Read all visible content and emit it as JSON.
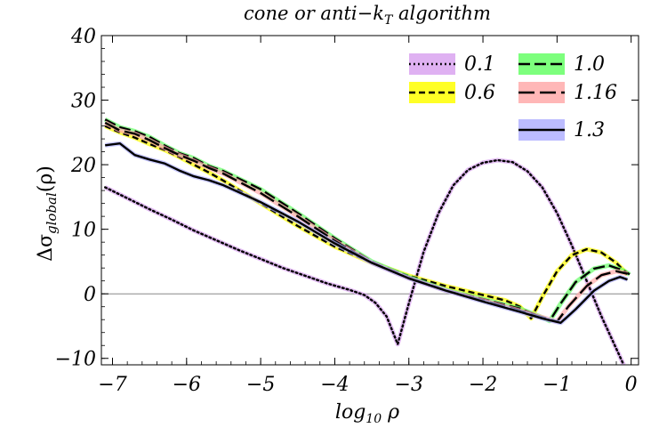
{
  "chart_data": {
    "type": "line",
    "title": "cone or anti−k",
    "title_sub": "T",
    "title_suffix": " algorithm",
    "xlabel": "log",
    "xlabel_sub": "10",
    "xlabel_suffix": " ρ",
    "ylabel": "Δσ",
    "ylabel_sub": "global",
    "ylabel_suffix": "(ρ)",
    "xlim": [
      -7.15,
      0.1
    ],
    "ylim": [
      -11,
      40
    ],
    "xticks": [
      -7,
      -6,
      -5,
      -4,
      -3,
      -2,
      -1,
      0
    ],
    "xtick_labels": [
      "−7",
      "−6",
      "−5",
      "−4",
      "−3",
      "−2",
      "−1",
      "0"
    ],
    "yticks": [
      -10,
      0,
      10,
      20,
      30,
      40
    ],
    "ytick_labels": [
      "−10",
      "0",
      "10",
      "20",
      "30",
      "40"
    ],
    "zero_line": true,
    "legend_position": "top-right",
    "series": [
      {
        "name": "0.1",
        "dash": "dot",
        "band": "#d9a3f0",
        "points": [
          [
            -7.1,
            16.5
          ],
          [
            -6.8,
            14.8
          ],
          [
            -6.5,
            13.1
          ],
          [
            -6.2,
            11.5
          ],
          [
            -5.9,
            9.8
          ],
          [
            -5.6,
            8.3
          ],
          [
            -5.3,
            6.8
          ],
          [
            -5.0,
            5.4
          ],
          [
            -4.7,
            4.0
          ],
          [
            -4.4,
            2.8
          ],
          [
            -4.1,
            1.6
          ],
          [
            -3.8,
            0.6
          ],
          [
            -3.6,
            -0.2
          ],
          [
            -3.45,
            -1.4
          ],
          [
            -3.3,
            -3.5
          ],
          [
            -3.15,
            -7.8
          ],
          [
            -3.0,
            -1.5
          ],
          [
            -2.8,
            6.5
          ],
          [
            -2.6,
            12.5
          ],
          [
            -2.4,
            16.8
          ],
          [
            -2.2,
            19.2
          ],
          [
            -2.0,
            20.3
          ],
          [
            -1.8,
            20.7
          ],
          [
            -1.6,
            20.4
          ],
          [
            -1.4,
            19.0
          ],
          [
            -1.2,
            16.5
          ],
          [
            -1.0,
            12.5
          ],
          [
            -0.8,
            7.5
          ],
          [
            -0.6,
            2.0
          ],
          [
            -0.4,
            -3.5
          ],
          [
            -0.2,
            -8.5
          ],
          [
            -0.1,
            -11.0
          ]
        ]
      },
      {
        "name": "0.6",
        "dash": "dash",
        "band": "#ffff00",
        "points": [
          [
            -7.1,
            26.0
          ],
          [
            -6.9,
            25.0
          ],
          [
            -6.7,
            24.2
          ],
          [
            -6.5,
            23.2
          ],
          [
            -6.3,
            22.3
          ],
          [
            -6.1,
            21.2
          ],
          [
            -5.9,
            20.0
          ],
          [
            -5.7,
            18.8
          ],
          [
            -5.5,
            17.5
          ],
          [
            -5.0,
            14.0
          ],
          [
            -4.5,
            10.5
          ],
          [
            -4.0,
            7.3
          ],
          [
            -3.5,
            4.8
          ],
          [
            -3.0,
            2.8
          ],
          [
            -2.5,
            1.2
          ],
          [
            -2.0,
            -0.2
          ],
          [
            -1.7,
            -1.0
          ],
          [
            -1.5,
            -2.0
          ],
          [
            -1.35,
            -3.8
          ],
          [
            -1.2,
            -0.5
          ],
          [
            -1.0,
            3.5
          ],
          [
            -0.8,
            6.0
          ],
          [
            -0.6,
            6.9
          ],
          [
            -0.4,
            6.4
          ],
          [
            -0.2,
            4.8
          ],
          [
            -0.05,
            3.0
          ]
        ]
      },
      {
        "name": "1.0",
        "dash": "longdash",
        "band": "#66ff66",
        "points": [
          [
            -7.1,
            27.0
          ],
          [
            -6.9,
            25.8
          ],
          [
            -6.7,
            25.2
          ],
          [
            -6.5,
            24.3
          ],
          [
            -6.3,
            23.0
          ],
          [
            -6.1,
            21.8
          ],
          [
            -5.9,
            21.0
          ],
          [
            -5.7,
            19.8
          ],
          [
            -5.5,
            19.0
          ],
          [
            -5.0,
            16.2
          ],
          [
            -4.5,
            12.5
          ],
          [
            -4.0,
            8.6
          ],
          [
            -3.5,
            5.0
          ],
          [
            -3.0,
            2.6
          ],
          [
            -2.5,
            0.6
          ],
          [
            -2.0,
            -0.8
          ],
          [
            -1.5,
            -2.3
          ],
          [
            -1.25,
            -3.4
          ],
          [
            -1.1,
            -4.2
          ],
          [
            -0.95,
            -1.5
          ],
          [
            -0.75,
            1.8
          ],
          [
            -0.5,
            3.9
          ],
          [
            -0.3,
            4.4
          ],
          [
            -0.1,
            3.6
          ],
          [
            -0.02,
            3.0
          ]
        ]
      },
      {
        "name": "1.16",
        "dash": "xlongdash",
        "band": "#ffaaaa",
        "points": [
          [
            -7.1,
            26.5
          ],
          [
            -6.9,
            25.3
          ],
          [
            -6.7,
            24.8
          ],
          [
            -6.5,
            23.8
          ],
          [
            -6.3,
            22.6
          ],
          [
            -6.1,
            21.5
          ],
          [
            -5.9,
            20.6
          ],
          [
            -5.7,
            19.5
          ],
          [
            -5.5,
            18.6
          ],
          [
            -5.0,
            15.6
          ],
          [
            -4.5,
            12.0
          ],
          [
            -4.0,
            8.2
          ],
          [
            -3.5,
            4.8
          ],
          [
            -3.0,
            2.4
          ],
          [
            -2.5,
            0.5
          ],
          [
            -2.0,
            -1.0
          ],
          [
            -1.5,
            -2.6
          ],
          [
            -1.15,
            -3.8
          ],
          [
            -1.0,
            -4.3
          ],
          [
            -0.85,
            -2.0
          ],
          [
            -0.6,
            1.2
          ],
          [
            -0.4,
            2.9
          ],
          [
            -0.2,
            3.5
          ],
          [
            -0.05,
            3.1
          ]
        ]
      },
      {
        "name": "1.3",
        "dash": "solid",
        "band": "#b0b0ff",
        "points": [
          [
            -7.1,
            23.0
          ],
          [
            -6.9,
            23.3
          ],
          [
            -6.7,
            21.5
          ],
          [
            -6.5,
            20.8
          ],
          [
            -6.3,
            20.2
          ],
          [
            -6.1,
            19.1
          ],
          [
            -5.9,
            18.2
          ],
          [
            -5.7,
            17.6
          ],
          [
            -5.5,
            16.8
          ],
          [
            -5.0,
            14.2
          ],
          [
            -4.5,
            11.2
          ],
          [
            -4.0,
            7.8
          ],
          [
            -3.5,
            4.8
          ],
          [
            -3.0,
            2.4
          ],
          [
            -2.5,
            0.5
          ],
          [
            -2.0,
            -1.2
          ],
          [
            -1.5,
            -2.8
          ],
          [
            -1.2,
            -3.8
          ],
          [
            -0.95,
            -4.5
          ],
          [
            -0.75,
            -2.4
          ],
          [
            -0.5,
            0.5
          ],
          [
            -0.3,
            2.0
          ],
          [
            -0.15,
            2.6
          ],
          [
            -0.05,
            2.2
          ]
        ]
      }
    ]
  }
}
